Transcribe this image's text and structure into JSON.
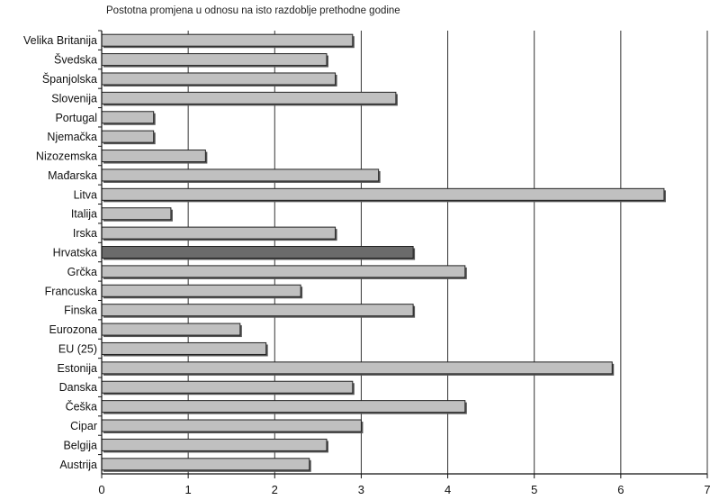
{
  "chart_data": {
    "type": "bar",
    "orientation": "horizontal",
    "title": "Postotna promjena u odnosu na isto razdoblje prethodne godine",
    "categories": [
      "Velika Britanija",
      "Švedska",
      "Španjolska",
      "Slovenija",
      "Portugal",
      "Njemačka",
      "Nizozemska",
      "Mađarska",
      "Litva",
      "Italija",
      "Irska",
      "Hrvatska",
      "Grčka",
      "Francuska",
      "Finska",
      "Eurozona",
      "EU (25)",
      "Estonija",
      "Danska",
      "Češka",
      "Cipar",
      "Belgija",
      "Austrija"
    ],
    "values": [
      2.9,
      2.6,
      2.7,
      3.4,
      0.6,
      0.6,
      1.2,
      3.2,
      6.5,
      0.8,
      2.7,
      3.6,
      4.2,
      2.3,
      3.6,
      1.6,
      1.9,
      5.9,
      2.9,
      4.2,
      3.0,
      2.6,
      2.4
    ],
    "highlight": [
      "Hrvatska",
      "Belgija"
    ],
    "colors": {
      "bar": "#c0c0c0",
      "highlight": "#6b6b6b",
      "outline": "#222222",
      "grid": "#333333"
    },
    "xlim": [
      0,
      7
    ],
    "xticks": [
      "0",
      "1",
      "2",
      "3",
      "4",
      "5",
      "6",
      "7"
    ],
    "xlabel": "",
    "ylabel": "",
    "grid": true,
    "legend": "none"
  }
}
